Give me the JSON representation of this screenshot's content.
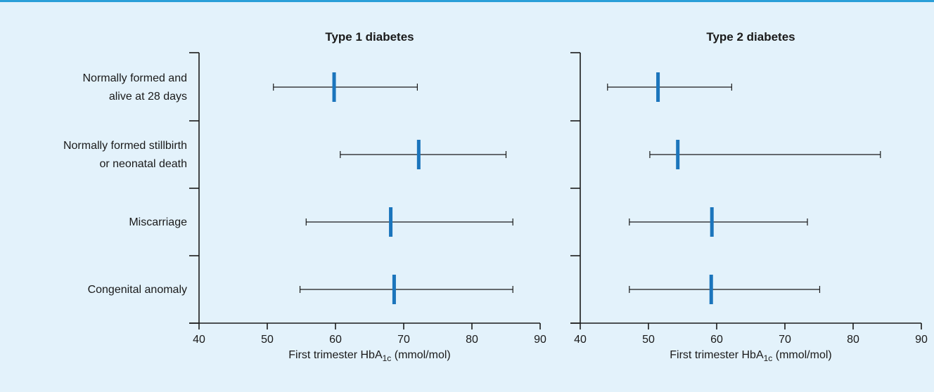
{
  "colors": {
    "background": "#e3f2fb",
    "frame_top": "#2a9fd8",
    "marker": "#1b75bc",
    "ink": "#1a1a1a"
  },
  "chart_data": [
    {
      "type": "scatter",
      "title": "Type 1 diabetes",
      "xlabel": {
        "prefix": "First trimester HbA",
        "sub": "1c",
        "suffix": " (mmol/mol)"
      },
      "xlim": [
        40,
        90
      ],
      "xticks": [
        40,
        50,
        60,
        70,
        80,
        90
      ],
      "categories": [
        [
          "Normally formed and",
          "alive at 28 days"
        ],
        [
          "Normally formed stillbirth",
          "or neonatal death"
        ],
        [
          "Miscarriage"
        ],
        [
          "Congenital anomaly"
        ]
      ],
      "points": [
        {
          "center": 59.8,
          "low": 50.9,
          "high": 72.0
        },
        {
          "center": 72.2,
          "low": 60.7,
          "high": 85.0
        },
        {
          "center": 68.1,
          "low": 55.7,
          "high": 86.0
        },
        {
          "center": 68.6,
          "low": 54.8,
          "high": 86.0
        }
      ]
    },
    {
      "type": "scatter",
      "title": "Type 2 diabetes",
      "xlabel": {
        "prefix": "First trimester HbA",
        "sub": "1c",
        "suffix": " (mmol/mol)"
      },
      "xlim": [
        40,
        90
      ],
      "xticks": [
        40,
        50,
        60,
        70,
        80,
        90
      ],
      "categories": [],
      "points": [
        {
          "center": 51.4,
          "low": 44.0,
          "high": 62.2
        },
        {
          "center": 54.3,
          "low": 50.2,
          "high": 84.0
        },
        {
          "center": 59.3,
          "low": 47.2,
          "high": 73.3
        },
        {
          "center": 59.2,
          "low": 47.2,
          "high": 75.1
        }
      ]
    }
  ]
}
